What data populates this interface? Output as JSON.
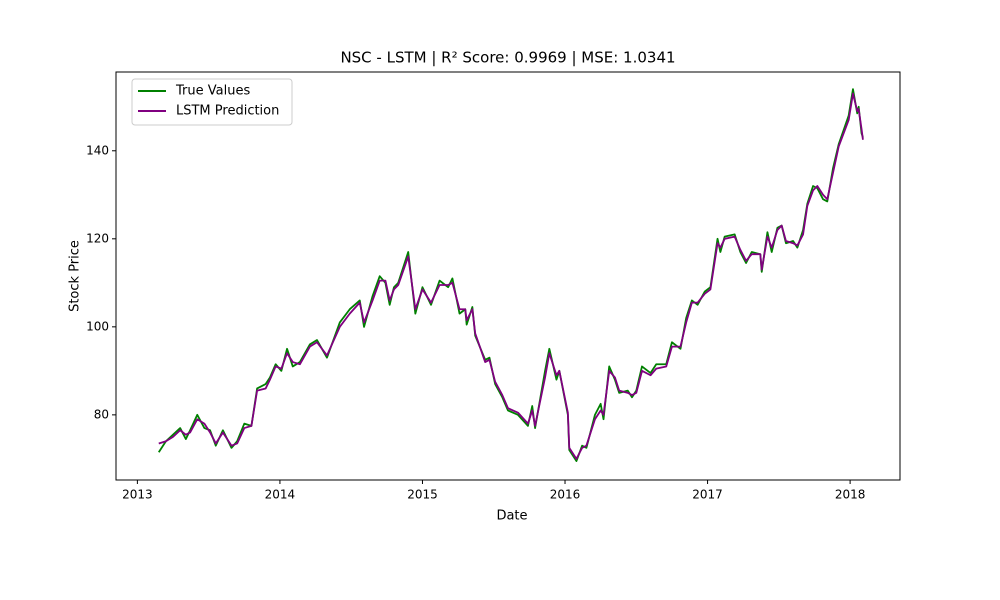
{
  "chart_data": {
    "type": "line",
    "title": "NSC - LSTM | R² Score: 0.9969 | MSE: 1.0341",
    "xlabel": "Date",
    "ylabel": "Stock Price",
    "x": [
      2013.15,
      2013.2,
      2013.25,
      2013.3,
      2013.34,
      2013.37,
      2013.42,
      2013.47,
      2013.51,
      2013.55,
      2013.6,
      2013.66,
      2013.7,
      2013.75,
      2013.8,
      2013.84,
      2013.9,
      2013.93,
      2013.97,
      2014.01,
      2014.05,
      2014.09,
      2014.14,
      2014.21,
      2014.26,
      2014.33,
      2014.42,
      2014.49,
      2014.56,
      2014.59,
      2014.65,
      2014.7,
      2014.74,
      2014.77,
      2014.8,
      2014.83,
      2014.9,
      2014.95,
      2015.0,
      2015.06,
      2015.12,
      2015.18,
      2015.21,
      2015.26,
      2015.3,
      2015.31,
      2015.35,
      2015.37,
      2015.44,
      2015.47,
      2015.51,
      2015.56,
      2015.6,
      2015.67,
      2015.74,
      2015.77,
      2015.79,
      2015.86,
      2015.89,
      2015.94,
      2015.96,
      2016.02,
      2016.03,
      2016.08,
      2016.12,
      2016.15,
      2016.21,
      2016.25,
      2016.27,
      2016.31,
      2016.35,
      2016.38,
      2016.44,
      2016.47,
      2016.5,
      2016.54,
      2016.6,
      2016.64,
      2016.71,
      2016.75,
      2016.81,
      2016.85,
      2016.89,
      2016.93,
      2016.98,
      2017.02,
      2017.07,
      2017.09,
      2017.12,
      2017.19,
      2017.23,
      2017.27,
      2017.31,
      2017.37,
      2017.38,
      2017.42,
      2017.45,
      2017.49,
      2017.52,
      2017.55,
      2017.6,
      2017.63,
      2017.67,
      2017.7,
      2017.74,
      2017.77,
      2017.81,
      2017.84,
      2017.88,
      2017.92,
      2017.99,
      2018.02,
      2018.05,
      2018.06,
      2018.08,
      2018.09
    ],
    "series": [
      {
        "name": "True Values",
        "color": "#008000",
        "values": [
          71.5,
          74,
          75.5,
          77,
          74.5,
          76.5,
          80,
          77,
          76.5,
          73,
          76.5,
          72.5,
          74,
          78,
          77.5,
          86,
          87,
          88.5,
          91.5,
          90,
          95,
          91,
          92,
          96,
          97,
          93,
          101,
          104,
          106,
          100,
          107,
          111.5,
          110,
          105,
          109,
          110,
          117,
          103,
          109,
          105,
          110.5,
          109,
          111,
          103,
          104,
          100.5,
          104.5,
          98,
          92.5,
          93,
          87,
          84,
          81,
          80,
          77.5,
          82,
          77,
          90,
          95,
          88,
          90,
          80,
          72,
          69.5,
          73,
          72.5,
          80,
          82.5,
          79,
          91,
          88,
          85,
          85.5,
          84,
          85.5,
          91,
          89.5,
          91.5,
          91.5,
          96.5,
          95,
          102,
          106,
          105,
          108,
          109,
          120,
          117,
          120.5,
          121,
          117,
          114.5,
          117,
          116.5,
          112.5,
          121.5,
          117,
          122.5,
          123,
          119,
          119.5,
          118,
          122,
          128,
          132,
          131.5,
          129,
          128.5,
          136,
          141.5,
          148,
          154,
          148.5,
          150,
          144,
          143
        ]
      },
      {
        "name": "LSTM Prediction",
        "color": "#800080",
        "values": [
          73.5,
          74,
          75,
          76.5,
          75.5,
          76,
          79,
          78,
          76,
          73.5,
          76,
          73,
          73.5,
          77,
          77.5,
          85.5,
          86,
          88,
          91,
          90.5,
          94,
          92,
          91.5,
          95.5,
          96.5,
          93.5,
          100,
          103,
          105.5,
          101,
          106,
          110.5,
          110.5,
          106,
          108.5,
          109.5,
          116,
          104,
          108.5,
          105.5,
          109.5,
          109.5,
          110,
          104,
          104,
          101.5,
          104,
          98.5,
          92,
          92.5,
          87.5,
          84.5,
          81.5,
          80.5,
          78,
          81,
          77.5,
          88.5,
          94,
          89,
          90,
          80.5,
          72.5,
          70,
          72.5,
          73,
          79,
          81,
          80,
          90,
          88.5,
          85.5,
          85,
          84.5,
          85,
          90,
          89,
          90.5,
          91,
          95.5,
          95.5,
          101,
          105.5,
          105.5,
          107.5,
          108.5,
          119,
          118,
          120,
          120.5,
          117.5,
          115,
          116.5,
          116.5,
          113,
          120.5,
          118,
          122,
          123,
          119.5,
          119,
          118.5,
          121,
          127.5,
          131,
          132,
          130,
          129,
          135,
          141,
          147,
          153,
          149,
          149.5,
          145,
          142.5
        ]
      }
    ],
    "xlim": [
      2012.85,
      2018.35
    ],
    "xticks": [
      2013,
      2014,
      2015,
      2016,
      2017,
      2018
    ],
    "ylim": [
      65.2,
      157.9
    ],
    "yticks": [
      80,
      100,
      120,
      140
    ],
    "grid": false,
    "legend": "upper left"
  }
}
